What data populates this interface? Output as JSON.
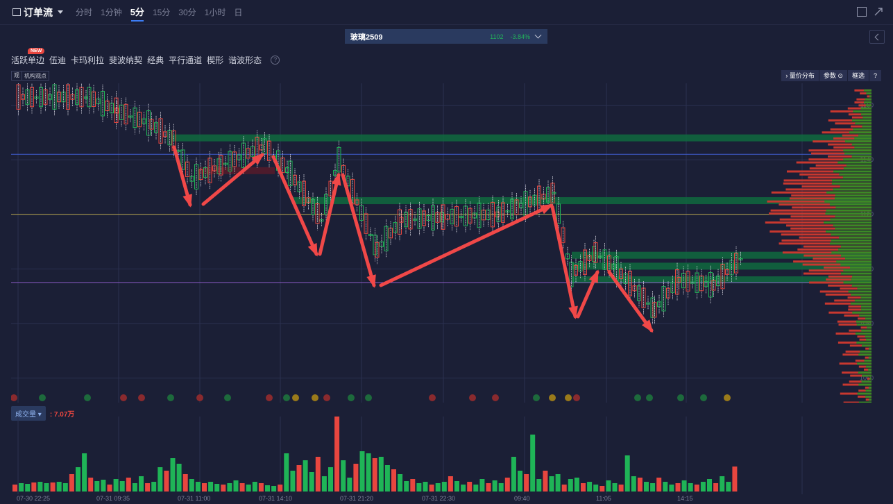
{
  "header": {
    "title": "订单流",
    "periods": [
      "分时",
      "1分钟",
      "5分",
      "15分",
      "30分",
      "1小时",
      "日"
    ],
    "active_period": "5分"
  },
  "symbol": {
    "name": "玻璃2509",
    "price": "1102",
    "change": "-3.84%"
  },
  "tools": {
    "items": [
      "活跃单边",
      "伍迪",
      "卡玛利拉",
      "斐波纳契",
      "经典",
      "平行通道",
      "楔形",
      "谐波形态"
    ],
    "new_badge": "NEW",
    "help": "?"
  },
  "inst": {
    "icon": "观",
    "label": "机构观点"
  },
  "rtools": {
    "items": [
      "量价分布",
      "参数",
      "框选",
      "?"
    ]
  },
  "volume": {
    "label": "成交量",
    "value": ": 7.07万"
  },
  "colors": {
    "up": "#e8463f",
    "down": "#1fb457",
    "bg": "#1b1f36",
    "grid": "#2b3050",
    "band": "#0f6a3e"
  },
  "chart_data": {
    "type": "candlestick-footprint",
    "y_ticks": [
      1160,
      1140,
      1120,
      1100,
      1080,
      1060
    ],
    "y_tick_labels": [
      "1160",
      "1140",
      "1120",
      "1100",
      "1080",
      "1060"
    ],
    "x_ticks": [
      "07-30 22:25",
      "07-31 09:35",
      "07-31 11:00",
      "07-31 14:10",
      "07-31 21:20",
      "07-31 22:30",
      "09:40",
      "11:05",
      "14:15"
    ],
    "ylim": [
      1051,
      1168
    ],
    "ref_lines": [
      {
        "y": 1142,
        "color": "#3f5fd0"
      },
      {
        "y": 1120,
        "color": "#b8a54a"
      },
      {
        "y": 1095,
        "color": "#8d5bc8"
      }
    ],
    "bands": [
      {
        "y": 1148,
        "color": "#0f6a3e"
      },
      {
        "y": 1125,
        "color": "#0f6a3e"
      },
      {
        "y": 1105,
        "color": "#0f6a3e"
      },
      {
        "y": 1101,
        "color": "#0f6a3e"
      },
      {
        "y": 1096,
        "color": "#0f6a3e"
      }
    ],
    "last_price": 1102
  }
}
